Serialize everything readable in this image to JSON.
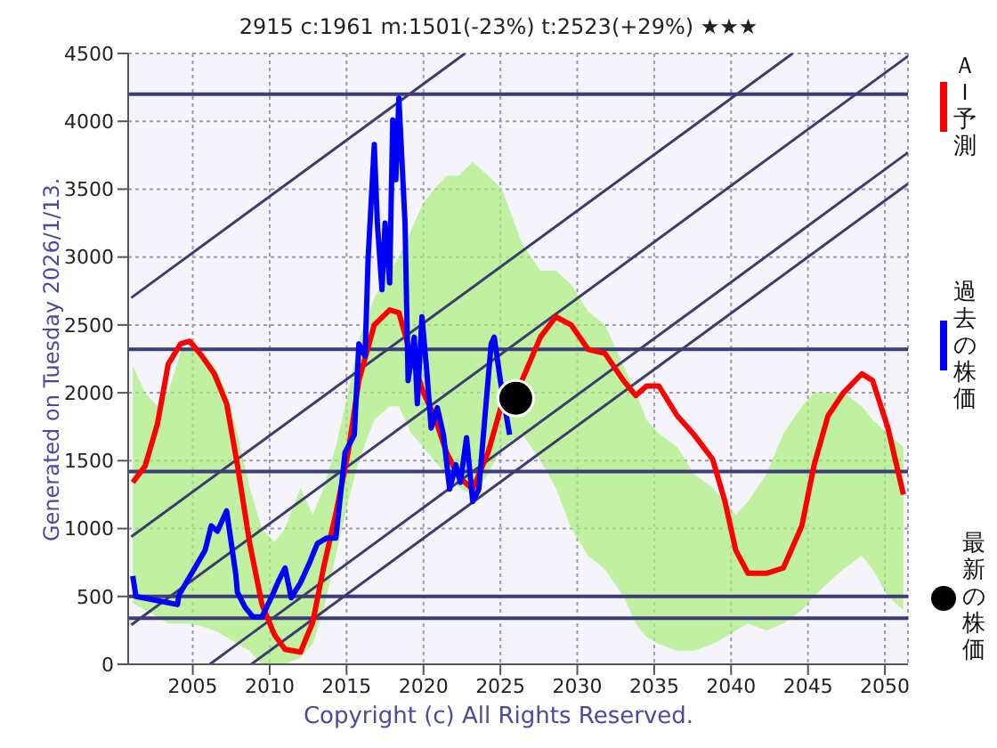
{
  "chart_data": {
    "type": "line",
    "title": "2915  c:1961  m:1501(-23%)  t:2523(+29%)  ★★★",
    "annotations": [
      "Generated on Tuesday 2026/1/13.",
      "Copyright (c) All Rights Reserved."
    ],
    "xlim": [
      2000.8,
      2051.5
    ],
    "xticks": [
      2005,
      2010,
      2015,
      2020,
      2025,
      2030,
      2035,
      2040,
      2045,
      2050
    ],
    "ylim": [
      0,
      4500
    ],
    "yticks": [
      0,
      500,
      1000,
      1500,
      2000,
      2500,
      3000,
      3500,
      4000,
      4500
    ],
    "grid": true,
    "legend": "right",
    "marker": "none",
    "line_style": "solid",
    "ref_lines": [
      {
        "axis": "y",
        "value": 4200,
        "color": "#3c3c78"
      },
      {
        "axis": "y",
        "value": 2320,
        "color": "#3c3c78"
      },
      {
        "axis": "y",
        "value": 1420,
        "color": "#3c3c78"
      },
      {
        "axis": "y",
        "value": 500,
        "color": "#3c3c78"
      },
      {
        "axis": "y",
        "value": 340,
        "color": "#3c3c78"
      }
    ],
    "series": [
      {
        "color": "#3c3c6e",
        "x": [
          2001,
          2022.7
        ],
        "values": [
          2700,
          4500
        ]
      },
      {
        "color": "#3c3c6e",
        "x": [
          2001,
          2044
        ],
        "values": [
          940,
          4500
        ]
      },
      {
        "color": "#3c3c6e",
        "x": [
          2001,
          2051.5
        ],
        "values": [
          290,
          4480
        ]
      },
      {
        "color": "#3c3c6e",
        "x": [
          2006.1,
          2051.5
        ],
        "values": [
          0,
          3770
        ]
      },
      {
        "color": "#3c3c6e",
        "x": [
          2008.8,
          2051.5
        ],
        "values": [
          0,
          3540
        ]
      },
      {
        "name": "ＡＩ予測",
        "color": "#ff0000",
        "x": [
          2001.1,
          2001.9,
          2002.7,
          2003.4,
          2004.2,
          2004.8,
          2005.6,
          2006.4,
          2007.2,
          2007.9,
          2008.7,
          2009.5,
          2010.3,
          2011.0,
          2012.0,
          2012.8,
          2013.5,
          2014.3,
          2015.1,
          2015.8,
          2016.8,
          2017.8,
          2018.4,
          2019.2,
          2020.0,
          2020.7,
          2021.5,
          2022.3,
          2023.2,
          2024.2,
          2025.1,
          2026.4,
          2027.6,
          2028.6,
          2029.6,
          2030.7,
          2031.8,
          2033.0,
          2033.8,
          2034.5,
          2035.3,
          2036.5,
          2037.6,
          2038.8,
          2039.6,
          2040.3,
          2041.1,
          2042.3,
          2043.4,
          2044.6,
          2045.4,
          2046.3,
          2047.3,
          2048.5,
          2049.2,
          2050.2,
          2051.2
        ],
        "values": [
          1340,
          1460,
          1770,
          2210,
          2360,
          2380,
          2270,
          2140,
          1920,
          1470,
          890,
          440,
          220,
          110,
          90,
          310,
          710,
          1110,
          1560,
          2090,
          2500,
          2610,
          2590,
          2270,
          2000,
          1830,
          1560,
          1380,
          1290,
          1560,
          1920,
          2090,
          2410,
          2560,
          2500,
          2320,
          2290,
          2090,
          1980,
          2050,
          2050,
          1830,
          1690,
          1510,
          1200,
          840,
          670,
          670,
          710,
          1020,
          1470,
          1830,
          2000,
          2140,
          2090,
          1740,
          1250
        ],
        "upper": [
          2200,
          2000,
          1900,
          2000,
          2300,
          2350,
          2300,
          2200,
          2000,
          1700,
          1300,
          1000,
          900,
          1000,
          1300,
          1100,
          1300,
          1600,
          2000,
          2400,
          2700,
          2900,
          3000,
          3200,
          3400,
          3500,
          3600,
          3600,
          3700,
          3600,
          3500,
          3100,
          2900,
          2900,
          2800,
          2600,
          2500,
          2200,
          2000,
          1800,
          1700,
          1600,
          1400,
          1300,
          1200,
          1100,
          1200,
          1400,
          1700,
          1900,
          2000,
          2000,
          2000,
          1900,
          1800,
          1700,
          1600
        ],
        "lower": [
          450,
          400,
          350,
          300,
          300,
          300,
          280,
          250,
          200,
          150,
          100,
          0,
          0,
          0,
          50,
          150,
          400,
          800,
          1200,
          1500,
          1800,
          1900,
          1900,
          1700,
          1600,
          1500,
          1400,
          1300,
          1250,
          1400,
          1600,
          1700,
          1500,
          1300,
          1000,
          800,
          700,
          500,
          300,
          200,
          150,
          100,
          100,
          150,
          200,
          250,
          300,
          250,
          300,
          400,
          500,
          600,
          700,
          800,
          700,
          500,
          400
        ]
      },
      {
        "name": "過去の株価",
        "color": "#0000ff",
        "x": [
          2001.1,
          2001.3,
          2004.0,
          2004.1,
          2005.8,
          2006.2,
          2006.6,
          2007.2,
          2007.8,
          2007.9,
          2008.4,
          2008.9,
          2009.5,
          2010.1,
          2010.6,
          2011.0,
          2011.4,
          2012.0,
          2012.6,
          2013.1,
          2013.7,
          2014.3,
          2014.9,
          2015.5,
          2015.8,
          2016.2,
          2016.4,
          2016.8,
          2017.0,
          2017.3,
          2017.5,
          2017.8,
          2018.0,
          2018.2,
          2018.4,
          2018.8,
          2019.0,
          2019.4,
          2019.6,
          2019.9,
          2020.2,
          2020.5,
          2020.9,
          2021.3,
          2021.7,
          2022.1,
          2022.4,
          2022.8,
          2023.2,
          2023.6,
          2024.0,
          2024.4,
          2024.6,
          2025.0,
          2025.6
        ],
        "values": [
          650,
          500,
          440,
          510,
          840,
          1020,
          980,
          1130,
          660,
          530,
          420,
          350,
          350,
          490,
          620,
          710,
          490,
          600,
          750,
          890,
          930,
          930,
          1560,
          1690,
          2360,
          2270,
          2990,
          3830,
          3250,
          2760,
          3250,
          2810,
          4010,
          3570,
          4170,
          3250,
          2090,
          2410,
          1920,
          2560,
          2180,
          1740,
          1890,
          1690,
          1290,
          1470,
          1340,
          1670,
          1200,
          1290,
          1830,
          2360,
          2410,
          2090,
          1690
        ]
      },
      {
        "name": "最新の株価",
        "type": "scatter",
        "marker": "circle",
        "color": "#000000",
        "x": [
          2026.0
        ],
        "values": [
          1960
        ]
      }
    ]
  }
}
